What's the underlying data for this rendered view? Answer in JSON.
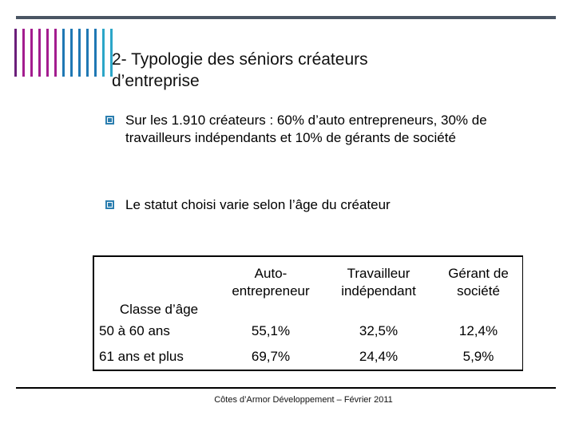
{
  "colors": {
    "top_rule": "#4a5563",
    "bullet": "#2d7fb0",
    "accent_bars": [
      "#6b1f7a",
      "#a31d8f",
      "#a31d8f",
      "#a31d8f",
      "#a31d8f",
      "#a31d8f",
      "#1f78b4",
      "#1f78b4",
      "#1f78b4",
      "#1f78b4",
      "#1f78b4",
      "#2ca6c8",
      "#2ca6c8"
    ]
  },
  "title": {
    "line1": "2- Typologie des séniors créateurs",
    "line2": "d’entreprise"
  },
  "bullets": [
    "Sur les 1.910 créateurs : 60% d’auto entrepreneurs, 30% de travailleurs indépendants et 10% de gérants de société",
    "Le statut choisi varie selon l’âge du créateur"
  ],
  "table": {
    "headers": {
      "label": "Classe d’âge",
      "col1_line1": "Auto-",
      "col1_line2": "entrepreneur",
      "col2_line1": "Travailleur",
      "col2_line2": "indépendant",
      "col3_line1": "Gérant de",
      "col3_line2": "société"
    },
    "rows": [
      {
        "label": "50 à 60 ans",
        "auto": "55,1%",
        "independant": "32,5%",
        "gerant": "12,4%"
      },
      {
        "label": "61 ans et plus",
        "auto": "69,7%",
        "independant": "24,4%",
        "gerant": "5,9%"
      }
    ]
  },
  "footer": "Côtes d’Armor Développement – Février 2011"
}
